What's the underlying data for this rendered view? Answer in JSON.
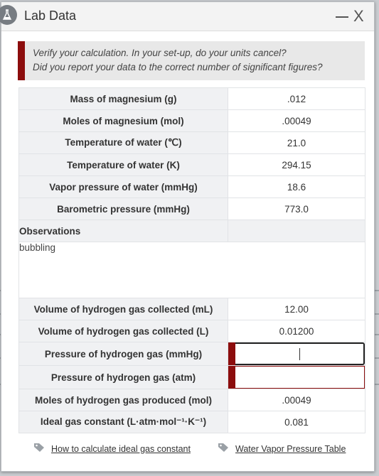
{
  "window": {
    "title": "Lab Data",
    "icon": "flask-icon",
    "minimize_icon": "minimize-icon",
    "close_label": "X"
  },
  "notice": {
    "line1": "Verify your calculation. In your set-up, do your units cancel?",
    "line2": "Did you report your data to the correct number of significant figures?"
  },
  "rows_top": [
    {
      "label": "Mass of magnesium (g)",
      "value": ".012"
    },
    {
      "label": "Moles of magnesium (mol)",
      "value": ".00049"
    },
    {
      "label": "Temperature of water (℃)",
      "value": "21.0"
    },
    {
      "label": "Temperature of water (K)",
      "value": "294.15"
    },
    {
      "label": "Vapor pressure of water (mmHg)",
      "value": "18.6"
    },
    {
      "label": "Barometric pressure (mmHg)",
      "value": "773.0"
    }
  ],
  "observations": {
    "label": "Observations",
    "text": "bubbling"
  },
  "rows_bottom": [
    {
      "label": "Volume of hydrogen gas collected (mL)",
      "value": "12.00"
    },
    {
      "label": "Volume of hydrogen gas collected (L)",
      "value": "0.01200"
    }
  ],
  "inputs": [
    {
      "label": "Pressure of hydrogen gas (mmHg)",
      "value": "",
      "placeholder": ""
    },
    {
      "label": "Pressure of hydrogen gas (atm)",
      "value": "",
      "placeholder": ""
    }
  ],
  "rows_final": [
    {
      "label": "Moles of hydrogen gas produced (mol)",
      "value": ".00049"
    },
    {
      "label": "Ideal gas constant (L·atm·mol⁻¹·K⁻¹)",
      "value": "0.081"
    }
  ],
  "links": [
    {
      "label": "How to calculate ideal gas constant",
      "icon": "tag-icon"
    },
    {
      "label": "Water Vapor Pressure Table",
      "icon": "tag-icon"
    }
  ],
  "colors": {
    "accent": "#8c0d0d",
    "label_bg": "#f0f1f3",
    "notice_bg": "#e8e8e8"
  }
}
